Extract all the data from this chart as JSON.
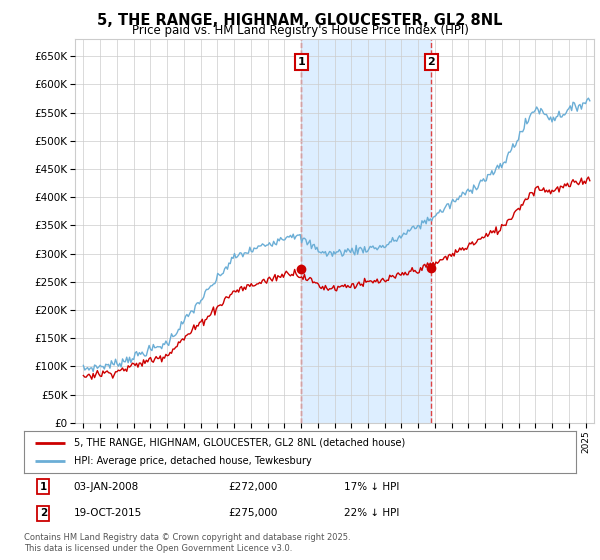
{
  "title": "5, THE RANGE, HIGHNAM, GLOUCESTER, GL2 8NL",
  "subtitle": "Price paid vs. HM Land Registry's House Price Index (HPI)",
  "legend_line1": "5, THE RANGE, HIGHNAM, GLOUCESTER, GL2 8NL (detached house)",
  "legend_line2": "HPI: Average price, detached house, Tewkesbury",
  "annotation1_date": "03-JAN-2008",
  "annotation1_price": "£272,000",
  "annotation1_hpi": "17% ↓ HPI",
  "annotation2_date": "19-OCT-2015",
  "annotation2_price": "£275,000",
  "annotation2_hpi": "22% ↓ HPI",
  "footer": "Contains HM Land Registry data © Crown copyright and database right 2025.\nThis data is licensed under the Open Government Licence v3.0.",
  "sale1_x": 2008.01,
  "sale1_y": 272000,
  "sale2_x": 2015.79,
  "sale2_y": 275000,
  "hpi_color": "#6baed6",
  "property_color": "#cc0000",
  "background_color": "#ffffff",
  "grid_color": "#cccccc",
  "vline_color": "#dd4444",
  "shade_color": "#ddeeff",
  "ylim": [
    0,
    680000
  ],
  "xlim": [
    1994.5,
    2025.5
  ]
}
